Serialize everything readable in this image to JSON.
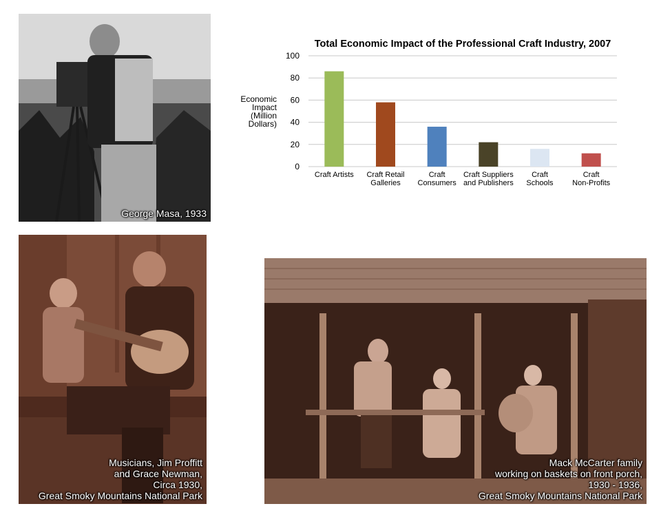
{
  "photos": {
    "masa": {
      "caption": [
        "George Masa, 1933"
      ]
    },
    "musicians": {
      "caption": [
        "Musicians, Jim Proffitt",
        "and Grace Newman,",
        "Circa 1930,",
        "Great Smoky Mountains National Park"
      ]
    },
    "mccarter": {
      "caption": [
        "Mack McCarter family",
        "working on baskets on front porch,",
        "1930 - 1936,",
        "Great Smoky Mountains  National Park"
      ]
    }
  },
  "chart_data": {
    "type": "bar",
    "title": "Total Economic Impact of the Professional Craft Industry, 2007",
    "ylabel": [
      "Economic",
      "Impact",
      "(Million",
      "Dollars)"
    ],
    "xlabel": "",
    "ylim": [
      0,
      100
    ],
    "yticks": [
      0,
      20,
      40,
      60,
      80,
      100
    ],
    "grid": true,
    "categories": [
      [
        "Craft Artists"
      ],
      [
        "Craft Retail",
        "Galleries"
      ],
      [
        "Craft",
        "Consumers"
      ],
      [
        "Craft Suppliers",
        "and Publishers"
      ],
      [
        "Craft",
        "Schools"
      ],
      [
        "Craft",
        "Non-Profits"
      ]
    ],
    "values": [
      86,
      58,
      36,
      22,
      16,
      12
    ],
    "colors": [
      "#9bbb59",
      "#a0491e",
      "#4f81bd",
      "#4a4328",
      "#dce6f2",
      "#c0504d"
    ]
  }
}
